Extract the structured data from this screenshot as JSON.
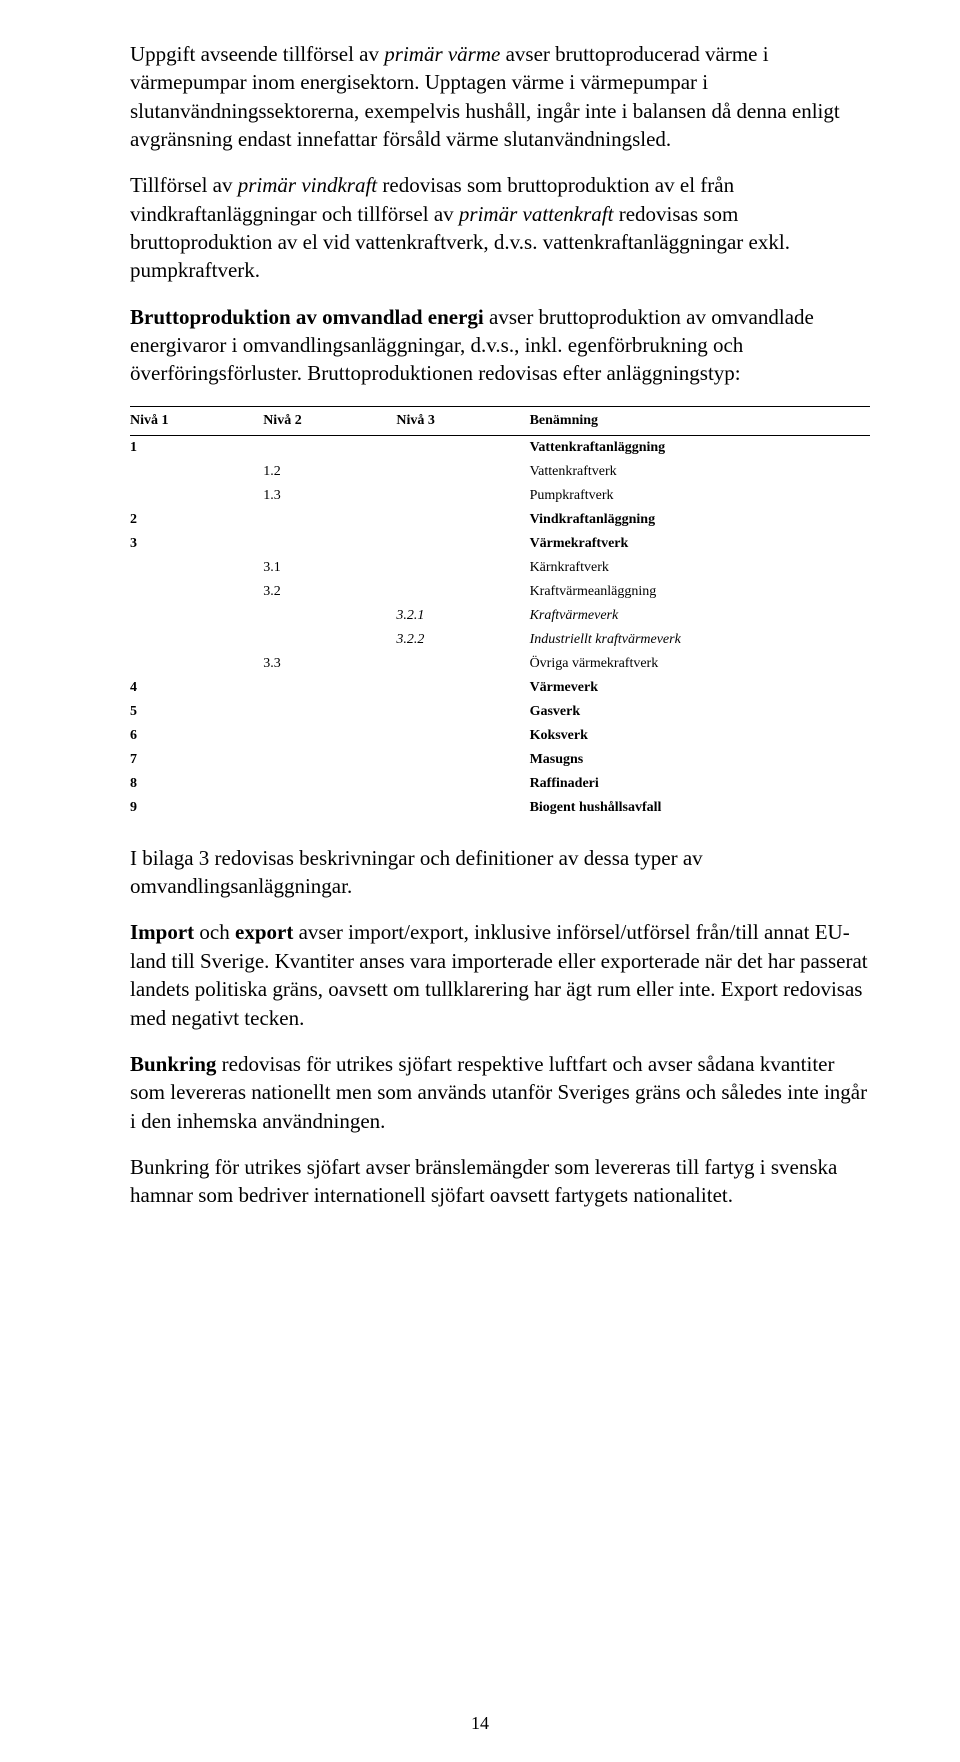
{
  "paragraphs": {
    "p1_a": "Uppgift avseende tillförsel av ",
    "p1_b": "primär värme",
    "p1_c": " avser bruttoproducerad värme i värmepumpar inom energisektorn. Upptagen värme i värmepumpar i slutanvändningssektorerna, exempelvis hushåll, ingår inte i balansen då denna enligt avgränsning endast innefattar försåld värme slutanvändningsled.",
    "p2_a": "Tillförsel av ",
    "p2_b": "primär vindkraft",
    "p2_c": " redovisas som bruttoproduktion av el från vindkraftanläggningar och tillförsel av ",
    "p2_d": "primär vattenkraft",
    "p2_e": " redovisas som bruttoproduktion av el vid vattenkraftverk, d.v.s. vattenkraftanläggningar exkl. pumpkraftverk.",
    "p3_a": "Bruttoproduktion av omvandlad energi",
    "p3_b": " avser bruttoproduktion av omvandlade energivaror i omvandlingsanläggningar, d.v.s., inkl. egenförbrukning och överföringsförluster. Bruttoproduktionen redovisas efter anläggningstyp:",
    "p4": "I bilaga 3 redovisas beskrivningar och definitioner av dessa typer av omvandlingsanläggningar.",
    "p5_a": "Import",
    "p5_b": " och ",
    "p5_c": "export",
    "p5_d": " avser import/export, inklusive införsel/utförsel från/till annat EU-land till Sverige. Kvantiter anses vara importerade eller exporterade när det har passerat landets politiska gräns, oavsett om tullklarering har ägt rum eller inte. Export redovisas med negativt tecken.",
    "p6_a": "Bunkring",
    "p6_b": " redovisas för utrikes sjöfart respektive luftfart och avser sådana kvantiter som levereras nationellt men som används utanför Sveriges gräns och således inte ingår i den inhemska användningen.",
    "p7": "Bunkring för utrikes sjöfart avser bränslemängder som levereras till fartyg i svenska hamnar som bedriver internationell sjöfart oavsett fartygets nationalitet."
  },
  "table": {
    "headers": {
      "n1": "Nivå 1",
      "n2": "Nivå 2",
      "n3": "Nivå 3",
      "ben": "Benämning"
    },
    "rows": [
      {
        "n1": "1",
        "n2": "",
        "n3": "",
        "ben": "Vattenkraftanläggning",
        "bold": true
      },
      {
        "n1": "",
        "n2": "1.2",
        "n3": "",
        "ben": "Vattenkraftverk"
      },
      {
        "n1": "",
        "n2": "1.3",
        "n3": "",
        "ben": "Pumpkraftverk"
      },
      {
        "n1": "2",
        "n2": "",
        "n3": "",
        "ben": "Vindkraftanläggning",
        "bold": true
      },
      {
        "n1": "3",
        "n2": "",
        "n3": "",
        "ben": "Värmekraftverk",
        "bold": true
      },
      {
        "n1": "",
        "n2": "3.1",
        "n3": "",
        "ben": "Kärnkraftverk"
      },
      {
        "n1": "",
        "n2": "3.2",
        "n3": "",
        "ben": "Kraftvärmeanläggning"
      },
      {
        "n1": "",
        "n2": "",
        "n3": "3.2.1",
        "ben": "Kraftvärmeverk",
        "italic": true
      },
      {
        "n1": "",
        "n2": "",
        "n3": "3.2.2",
        "ben": "Industriellt kraftvärmeverk",
        "italic": true
      },
      {
        "n1": "",
        "n2": "3.3",
        "n3": "",
        "ben": "Övriga värmekraftverk"
      },
      {
        "n1": "4",
        "n2": "",
        "n3": "",
        "ben": "Värmeverk",
        "bold": true
      },
      {
        "n1": "5",
        "n2": "",
        "n3": "",
        "ben": "Gasverk",
        "bold": true
      },
      {
        "n1": "6",
        "n2": "",
        "n3": "",
        "ben": "Koksverk",
        "bold": true
      },
      {
        "n1": "7",
        "n2": "",
        "n3": "",
        "ben": "Masugns",
        "bold": true
      },
      {
        "n1": "8",
        "n2": "",
        "n3": "",
        "ben": "Raffinaderi",
        "bold": true
      },
      {
        "n1": "9",
        "n2": "",
        "n3": "",
        "ben": "Biogent hushållsavfall",
        "bold": true
      }
    ]
  },
  "pagenum": "14"
}
